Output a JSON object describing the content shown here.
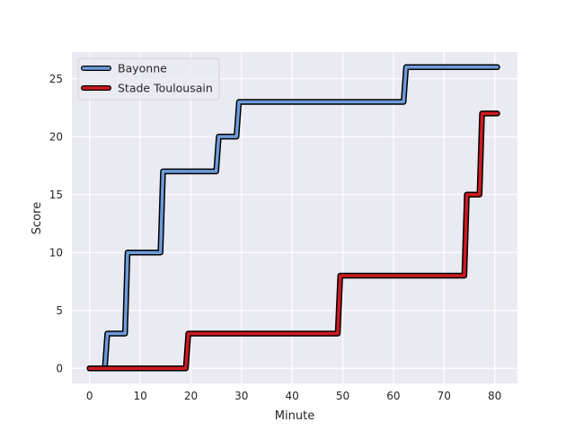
{
  "chart_data": {
    "type": "line",
    "title": "",
    "xlabel": "Minute",
    "ylabel": "Score",
    "xlim": [
      -3.5,
      84.5
    ],
    "ylim": [
      -1.3,
      27.3
    ],
    "xticks": [
      0,
      10,
      20,
      30,
      40,
      50,
      60,
      70,
      80
    ],
    "yticks": [
      0,
      5,
      10,
      15,
      20,
      25
    ],
    "grid": true,
    "legend_position": "top-left",
    "step": "post",
    "series": [
      {
        "name": "Bayonne",
        "color": "#6d9bd9",
        "x": [
          0,
          3,
          7,
          14,
          25,
          29,
          62,
          80.5
        ],
        "y": [
          0,
          3,
          10,
          17,
          20,
          23,
          26,
          26
        ]
      },
      {
        "name": "Stade Toulousain",
        "color": "#cc1a20",
        "x": [
          0,
          19,
          49,
          74,
          77,
          80.5
        ],
        "y": [
          0,
          3,
          8,
          15,
          22,
          22
        ]
      }
    ]
  }
}
